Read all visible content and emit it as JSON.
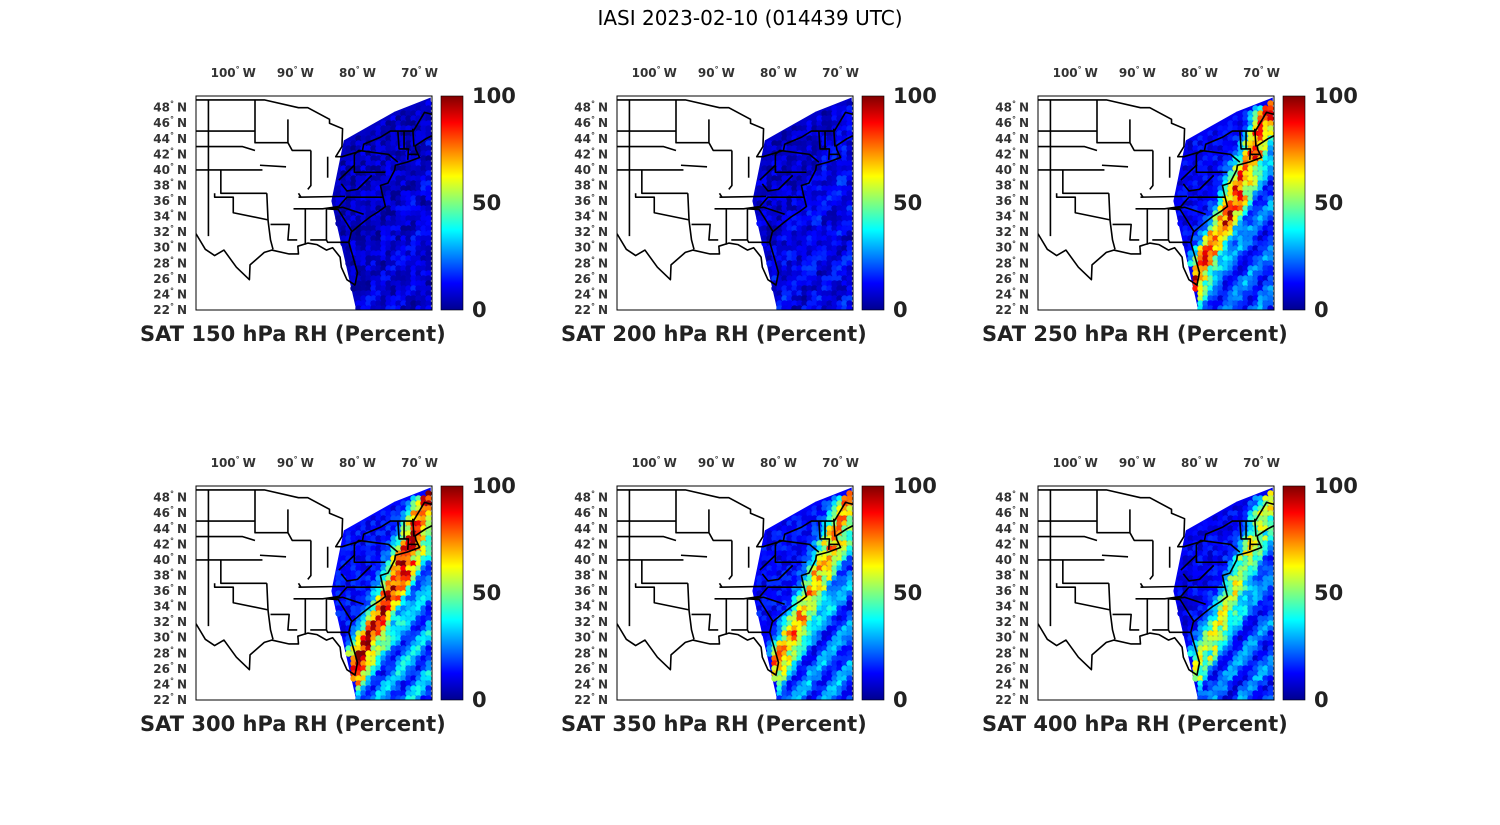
{
  "figure": {
    "title": "IASI 2023-02-10 (014439 UTC)"
  },
  "axes": {
    "lon_ticks": [
      {
        "value": -100,
        "label": "100",
        "suffix": "W"
      },
      {
        "value": -90,
        "label": "90",
        "suffix": "W"
      },
      {
        "value": -80,
        "label": "80",
        "suffix": "W"
      },
      {
        "value": -70,
        "label": "70",
        "suffix": "W"
      }
    ],
    "lat_ticks": [
      {
        "value": 48,
        "label": "48",
        "suffix": "N"
      },
      {
        "value": 46,
        "label": "46",
        "suffix": "N"
      },
      {
        "value": 44,
        "label": "44",
        "suffix": "N"
      },
      {
        "value": 42,
        "label": "42",
        "suffix": "N"
      },
      {
        "value": 40,
        "label": "40",
        "suffix": "N"
      },
      {
        "value": 38,
        "label": "38",
        "suffix": "N"
      },
      {
        "value": 36,
        "label": "36",
        "suffix": "N"
      },
      {
        "value": 34,
        "label": "34",
        "suffix": "N"
      },
      {
        "value": 32,
        "label": "32",
        "suffix": "N"
      },
      {
        "value": 30,
        "label": "30",
        "suffix": "N"
      },
      {
        "value": 28,
        "label": "28",
        "suffix": "N"
      },
      {
        "value": 26,
        "label": "26",
        "suffix": "N"
      },
      {
        "value": 24,
        "label": "24",
        "suffix": "N"
      },
      {
        "value": 22,
        "label": "22",
        "suffix": "N"
      }
    ],
    "colorbar": {
      "colormap": "jet",
      "range": [
        0,
        100
      ],
      "ticks": [
        "100",
        "50",
        "0"
      ]
    }
  },
  "panels": [
    {
      "title": "SAT 150 hPa RH (Percent)",
      "level_hpa": 150,
      "moist_band": 0.0,
      "ocean_moisture": 0.08
    },
    {
      "title": "SAT 200 hPa RH (Percent)",
      "level_hpa": 200,
      "moist_band": 0.05,
      "ocean_moisture": 0.12
    },
    {
      "title": "SAT 250 hPa RH (Percent)",
      "level_hpa": 250,
      "moist_band": 0.85,
      "ocean_moisture": 0.3
    },
    {
      "title": "SAT 300 hPa RH (Percent)",
      "level_hpa": 300,
      "moist_band": 0.9,
      "ocean_moisture": 0.4
    },
    {
      "title": "SAT 350 hPa RH (Percent)",
      "level_hpa": 350,
      "moist_band": 0.7,
      "ocean_moisture": 0.35
    },
    {
      "title": "SAT 400 hPa RH (Percent)",
      "level_hpa": 400,
      "moist_band": 0.55,
      "ocean_moisture": 0.3
    }
  ],
  "colors": {
    "borders": "#000000",
    "map_background": "#ffffff",
    "text": "#222222"
  }
}
